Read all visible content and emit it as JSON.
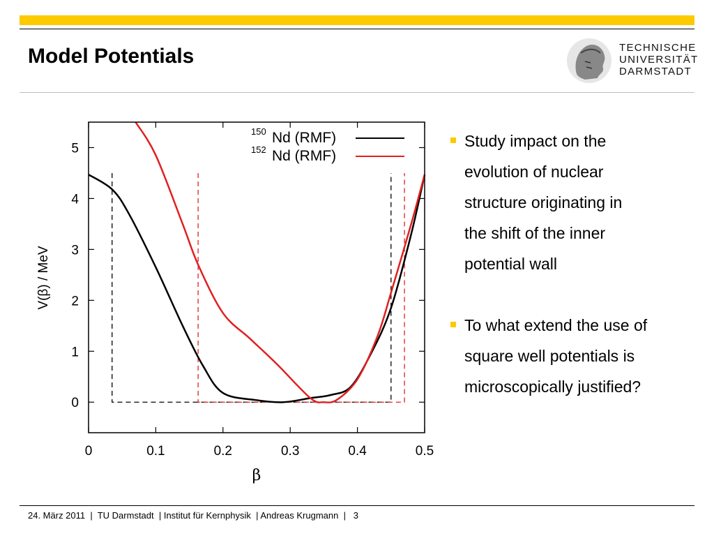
{
  "header": {
    "title": "Model Potentials"
  },
  "logo": {
    "lines": [
      "TECHNISCHE",
      "UNIVERSITÄT",
      "DARMSTADT"
    ]
  },
  "bullets": [
    {
      "lines": [
        "Study impact on the",
        "evolution of nuclear",
        "structure originating in",
        "the shift of the inner",
        "potential wall"
      ]
    },
    {
      "lines": [
        "To what extend the use of",
        "square well potentials is",
        "microscopically justified?"
      ]
    }
  ],
  "footer": {
    "text": "24. März 2011  |  TU Darmstadt  | Institut für Kernphysik  | Andreas Krugmann  |   3"
  },
  "colors": {
    "accent": "#fdca00",
    "series_150": "#000000",
    "series_152": "#e02020"
  },
  "chart_data": {
    "type": "line",
    "xlabel": "β",
    "ylabel": "V(β) / MeV",
    "xlim": [
      0,
      0.5
    ],
    "ylim": [
      -0.6,
      5.5
    ],
    "xticks": [
      "0",
      "0.1",
      "0.2",
      "0.3",
      "0.4",
      "0.5"
    ],
    "yticks": [
      "0",
      "1",
      "2",
      "3",
      "4",
      "5"
    ],
    "legend_position": "top-right",
    "series": [
      {
        "iso": "150",
        "label": "Nd (RMF)",
        "color": "#000000",
        "x": [
          0.0,
          0.035,
          0.06,
          0.1,
          0.14,
          0.17,
          0.2,
          0.25,
          0.29,
          0.33,
          0.36,
          0.39,
          0.42,
          0.45,
          0.48,
          0.5
        ],
        "y": [
          4.47,
          4.18,
          3.7,
          2.65,
          1.5,
          0.72,
          0.18,
          0.04,
          0.0,
          0.08,
          0.14,
          0.3,
          0.95,
          1.85,
          3.3,
          4.47
        ]
      },
      {
        "iso": "152",
        "label": "Nd (RMF)",
        "color": "#e02020",
        "x": [
          0.07,
          0.1,
          0.14,
          0.163,
          0.2,
          0.24,
          0.28,
          0.33,
          0.35,
          0.37,
          0.4,
          0.43,
          0.45,
          0.48,
          0.5
        ],
        "y": [
          5.5,
          4.85,
          3.5,
          2.7,
          1.75,
          1.25,
          0.75,
          0.08,
          0.0,
          0.05,
          0.45,
          1.3,
          2.15,
          3.5,
          4.47
        ]
      }
    ],
    "square_wells": [
      {
        "color": "#000000",
        "x_inner": 0.035,
        "x_outer": 0.45,
        "y_wall": 4.5
      },
      {
        "color": "#e02020",
        "x_inner": 0.163,
        "x_outer": 0.47,
        "y_wall": 4.5
      }
    ]
  }
}
